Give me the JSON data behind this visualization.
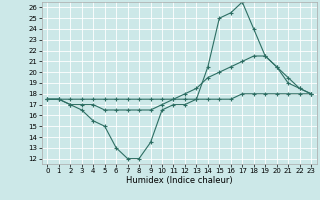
{
  "xlabel": "Humidex (Indice chaleur)",
  "background_color": "#cce8e8",
  "grid_color": "#ffffff",
  "line_color": "#2d6e63",
  "xlim": [
    -0.5,
    23.5
  ],
  "ylim": [
    11.5,
    26.5
  ],
  "xticks": [
    0,
    1,
    2,
    3,
    4,
    5,
    6,
    7,
    8,
    9,
    10,
    11,
    12,
    13,
    14,
    15,
    16,
    17,
    18,
    19,
    20,
    21,
    22,
    23
  ],
  "yticks": [
    12,
    13,
    14,
    15,
    16,
    17,
    18,
    19,
    20,
    21,
    22,
    23,
    24,
    25,
    26
  ],
  "series1_x": [
    0,
    1,
    2,
    3,
    4,
    5,
    6,
    7,
    8,
    9,
    10,
    11,
    12,
    13,
    14,
    15,
    16,
    17,
    18,
    19,
    20,
    21,
    22,
    23
  ],
  "series1_y": [
    17.5,
    17.5,
    17.0,
    16.5,
    15.5,
    15.0,
    13.0,
    12.0,
    12.0,
    13.5,
    16.5,
    17.0,
    17.0,
    17.5,
    20.5,
    25.0,
    25.5,
    26.5,
    24.0,
    21.5,
    20.5,
    19.0,
    18.5,
    18.0
  ],
  "series2_x": [
    0,
    1,
    2,
    3,
    4,
    5,
    6,
    7,
    8,
    9,
    10,
    11,
    12,
    13,
    14,
    15,
    16,
    17,
    18,
    19,
    20,
    21,
    22,
    23
  ],
  "series2_y": [
    17.5,
    17.5,
    17.0,
    17.0,
    17.0,
    16.5,
    16.5,
    16.5,
    16.5,
    16.5,
    17.0,
    17.5,
    18.0,
    18.5,
    19.5,
    20.0,
    20.5,
    21.0,
    21.5,
    21.5,
    20.5,
    19.5,
    18.5,
    18.0
  ],
  "series3_x": [
    0,
    1,
    2,
    3,
    4,
    5,
    6,
    7,
    8,
    9,
    10,
    11,
    12,
    13,
    14,
    15,
    16,
    17,
    18,
    19,
    20,
    21,
    22,
    23
  ],
  "series3_y": [
    17.5,
    17.5,
    17.5,
    17.5,
    17.5,
    17.5,
    17.5,
    17.5,
    17.5,
    17.5,
    17.5,
    17.5,
    17.5,
    17.5,
    17.5,
    17.5,
    17.5,
    18.0,
    18.0,
    18.0,
    18.0,
    18.0,
    18.0,
    18.0
  ],
  "tick_fontsize": 5,
  "xlabel_fontsize": 6,
  "marker": "+",
  "markersize": 3.5,
  "linewidth": 0.8
}
